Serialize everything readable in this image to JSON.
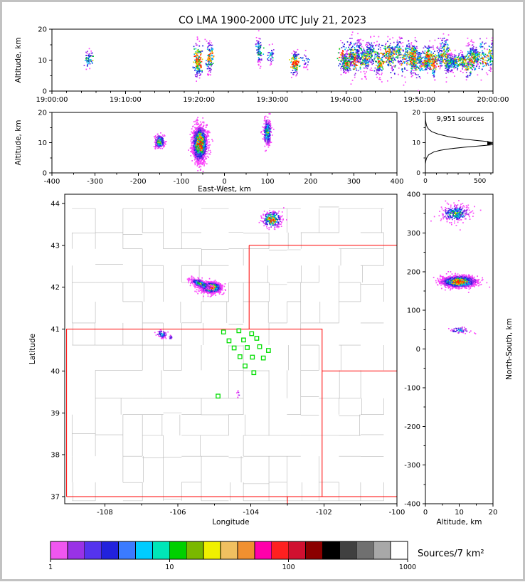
{
  "title": "CO LMA 1900-2000 UTC July 21, 2023",
  "colorbar": {
    "label": "Sources/7 km²",
    "tick_labels": [
      "1",
      "10",
      "100",
      "1000"
    ],
    "scale": "log",
    "colors": [
      "#f056f0",
      "#9932e6",
      "#5533ee",
      "#2222dd",
      "#3b7bff",
      "#00ccff",
      "#00e6b8",
      "#00d000",
      "#7ab800",
      "#f0f000",
      "#f0c060",
      "#f09030",
      "#ff00aa",
      "#ff2020",
      "#d01030",
      "#8b0000",
      "#000000",
      "#404040",
      "#707070",
      "#a8a8a8",
      "#ffffff"
    ]
  },
  "point_palette": [
    "#fa46fa",
    "#9128e6",
    "#2222dd",
    "#00b4f0",
    "#00c830",
    "#d8d800",
    "#ff9400",
    "#ff1e00"
  ],
  "chart_data": [
    {
      "id": "time_height",
      "type": "scatter",
      "xlabel": "",
      "ylabel": "Altitude, km",
      "xlim_seconds_after_1900utc": [
        0,
        3600
      ],
      "x_tick_values_s": [
        0,
        600,
        1200,
        1800,
        2400,
        3000,
        3600
      ],
      "x_tick_labels": [
        "19:00:00",
        "19:10:00",
        "19:20:00",
        "19:30:00",
        "19:40:00",
        "19:50:00",
        "20:00:00"
      ],
      "ylim_km": [
        0,
        20
      ],
      "y_ticks": [
        0,
        10,
        20
      ],
      "events": [
        {
          "time_utc": "19:05:05",
          "t_s": 305,
          "alt_center_km": 10.2,
          "alt_spread_km": 1.6,
          "sources": 55,
          "peak_intensity": 0.5
        },
        {
          "time_utc": "19:19:55",
          "t_s": 1195,
          "alt_center_km": 10.0,
          "alt_spread_km": 2.8,
          "sources": 160,
          "peak_intensity": 0.9
        },
        {
          "time_utc": "19:21:30",
          "t_s": 1290,
          "alt_center_km": 11.0,
          "alt_spread_km": 2.6,
          "sources": 110,
          "peak_intensity": 0.7
        },
        {
          "time_utc": "19:28:10",
          "t_s": 1690,
          "alt_center_km": 13.0,
          "alt_spread_km": 2.3,
          "sources": 80,
          "peak_intensity": 0.5
        },
        {
          "time_utc": "19:29:50",
          "t_s": 1790,
          "alt_center_km": 11.5,
          "alt_spread_km": 1.5,
          "sources": 35,
          "peak_intensity": 0.4
        },
        {
          "time_utc": "19:33:05",
          "t_s": 1985,
          "alt_center_km": 9.0,
          "alt_spread_km": 1.9,
          "sources": 130,
          "peak_intensity": 0.85
        },
        {
          "time_utc": "19:34:30",
          "t_s": 2070,
          "alt_center_km": 10.0,
          "alt_spread_km": 1.3,
          "sources": 25,
          "peak_intensity": 0.35
        },
        {
          "continuous": true,
          "period_utc": "19:39:30-20:00:00",
          "start_s": 2370,
          "end_s": 3600,
          "alt_range_km": [
            5,
            17.5
          ],
          "note": "quasi-continuous storm activity"
        }
      ]
    },
    {
      "id": "ew_height",
      "type": "scatter",
      "xlabel": "East-West, km",
      "ylabel": "Altitude, km",
      "xlim_km": [
        -400,
        400
      ],
      "x_tick_values": [
        -400,
        -300,
        -200,
        -100,
        0,
        100,
        200,
        300,
        400
      ],
      "x_tick_labels": [
        "-400",
        "-300",
        "-200",
        "-100",
        "0",
        "100",
        "200",
        "300",
        "400"
      ],
      "ylim_km": [
        0,
        20
      ],
      "y_ticks": [
        0,
        10,
        20
      ],
      "clusters": [
        {
          "ew_km": -150,
          "ew_spread_km": 6,
          "alt_km": 10.3,
          "alt_spread_km": 1.2,
          "sources": 210,
          "peak_intensity": 0.6
        },
        {
          "ew_km": -57,
          "ew_spread_km": 8,
          "alt_km": 9.6,
          "alt_spread_km": 2.7,
          "sources": 1900,
          "peak_intensity": 1.0
        },
        {
          "ew_km": 100,
          "ew_spread_km": 5,
          "alt_km": 13.5,
          "alt_spread_km": 2.3,
          "sources": 280,
          "peak_intensity": 0.55
        }
      ]
    },
    {
      "id": "altitude_histogram",
      "type": "line",
      "annotation": "9,951 sources",
      "xlim_sources": [
        0,
        620
      ],
      "x_tick_values": [
        0,
        500
      ],
      "x_tick_labels": [
        "0",
        "500"
      ],
      "ylim_km": [
        0,
        20
      ],
      "y_ticks": [
        0,
        10,
        20
      ],
      "profile": {
        "alt_km": [
          0,
          3,
          4,
          5,
          6,
          7,
          7.5,
          8,
          8.5,
          9,
          9.3,
          9.6,
          10,
          10.4,
          10.8,
          11.3,
          12,
          12.8,
          13.6,
          14.5,
          15.5,
          16.5,
          17.5,
          20
        ],
        "sources": [
          0,
          0,
          4,
          12,
          30,
          80,
          140,
          230,
          360,
          520,
          610,
          650,
          640,
          560,
          450,
          330,
          210,
          120,
          60,
          28,
          12,
          5,
          1,
          0
        ]
      },
      "offscale_arrow_at_alt_km": 9.8
    },
    {
      "id": "plan_view_map",
      "type": "scatter",
      "xlabel": "Longitude",
      "ylabel": "Latitude",
      "xlim": [
        -109.1,
        -100.0
      ],
      "x_tick_values": [
        -108,
        -106,
        -104,
        -102,
        -100
      ],
      "x_tick_labels": [
        "-108",
        "-106",
        "-104",
        "-102",
        "-100"
      ],
      "ylim": [
        36.83,
        44.22
      ],
      "y_tick_values": [
        37,
        38,
        39,
        40,
        41,
        42,
        43,
        44
      ],
      "y_tick_labels": [
        "37",
        "38",
        "39",
        "40",
        "41",
        "42",
        "43",
        "44"
      ],
      "station_marker_color": "#00dd00",
      "state_border_color": "#ff0000",
      "county_line_color": "#b4b4b4",
      "clusters": [
        {
          "lon": -103.42,
          "lat": 43.62,
          "lon_spread": 0.13,
          "lat_spread": 0.1,
          "sources": 280,
          "peak_intensity": 0.8
        },
        {
          "lon": -105.08,
          "lat": 41.99,
          "lon_spread": 0.13,
          "lat_spread": 0.06,
          "sources": 1500,
          "peak_intensity": 1.0
        },
        {
          "lon": -105.38,
          "lat": 42.08,
          "lon_spread": 0.14,
          "lat_spread": 0.05,
          "sources": 420,
          "peak_intensity": 0.55,
          "slope_dlat_dlon": -0.3
        },
        {
          "lon": -106.44,
          "lat": 40.88,
          "lon_spread": 0.07,
          "lat_spread": 0.05,
          "sources": 70,
          "peak_intensity": 0.5
        },
        {
          "lon": -106.2,
          "lat": 40.8,
          "lon_spread": 0.03,
          "lat_spread": 0.03,
          "sources": 12,
          "peak_intensity": 0.3
        },
        {
          "lon": -104.33,
          "lat": 39.45,
          "lon_spread": 0.03,
          "lat_spread": 0.05,
          "sources": 8,
          "peak_intensity": 0.25
        }
      ],
      "stations_lon_lat": [
        [
          -104.75,
          40.93
        ],
        [
          -104.33,
          40.96
        ],
        [
          -103.98,
          40.89
        ],
        [
          -104.6,
          40.72
        ],
        [
          -104.2,
          40.74
        ],
        [
          -103.84,
          40.78
        ],
        [
          -104.46,
          40.55
        ],
        [
          -104.1,
          40.56
        ],
        [
          -103.76,
          40.58
        ],
        [
          -103.52,
          40.49
        ],
        [
          -104.3,
          40.34
        ],
        [
          -103.96,
          40.33
        ],
        [
          -103.66,
          40.31
        ],
        [
          -104.16,
          40.12
        ],
        [
          -103.92,
          39.96
        ],
        [
          -104.9,
          39.4
        ]
      ],
      "state_borders": [
        [
          [
            -109.05,
            37.0
          ],
          [
            -102.05,
            37.0
          ],
          [
            -102.05,
            41.0
          ],
          [
            -109.05,
            41.0
          ],
          [
            -109.05,
            37.0
          ]
        ],
        [
          [
            -104.05,
            41.0
          ],
          [
            -104.05,
            43.0
          ]
        ],
        [
          [
            -104.05,
            43.0
          ],
          [
            -100.0,
            43.0
          ]
        ],
        [
          [
            -102.05,
            40.0
          ],
          [
            -100.0,
            40.0
          ]
        ],
        [
          [
            -102.05,
            37.0
          ],
          [
            -100.0,
            37.0
          ]
        ],
        [
          [
            -103.0,
            37.0
          ],
          [
            -103.0,
            36.83
          ]
        ]
      ]
    },
    {
      "id": "ns_height",
      "type": "scatter",
      "xlabel": "Altitude, km",
      "ylabel": "North-South, km",
      "xlim_km": [
        0,
        20
      ],
      "x_tick_values": [
        0,
        10,
        20
      ],
      "x_tick_labels": [
        "0",
        "10",
        "20"
      ],
      "ylim_km": [
        -400,
        400
      ],
      "y_tick_values": [
        -400,
        -300,
        -200,
        -100,
        0,
        100,
        200,
        300,
        400
      ],
      "y_tick_labels": [
        "-400",
        "-300",
        "-200",
        "-100",
        "0",
        "100",
        "200",
        "300",
        "400"
      ],
      "clusters": [
        {
          "ns_km": 350,
          "ns_spread_km": 11,
          "alt_km": 9,
          "alt_spread_km": 2.1,
          "sources": 280,
          "peak_intensity": 0.55
        },
        {
          "ns_km": 174,
          "ns_spread_km": 7,
          "alt_km": 10,
          "alt_spread_km": 2.4,
          "sources": 1900,
          "peak_intensity": 1.0
        },
        {
          "ns_km": 48,
          "ns_spread_km": 4.5,
          "alt_km": 10,
          "alt_spread_km": 1.4,
          "sources": 60,
          "peak_intensity": 0.45
        }
      ]
    }
  ]
}
